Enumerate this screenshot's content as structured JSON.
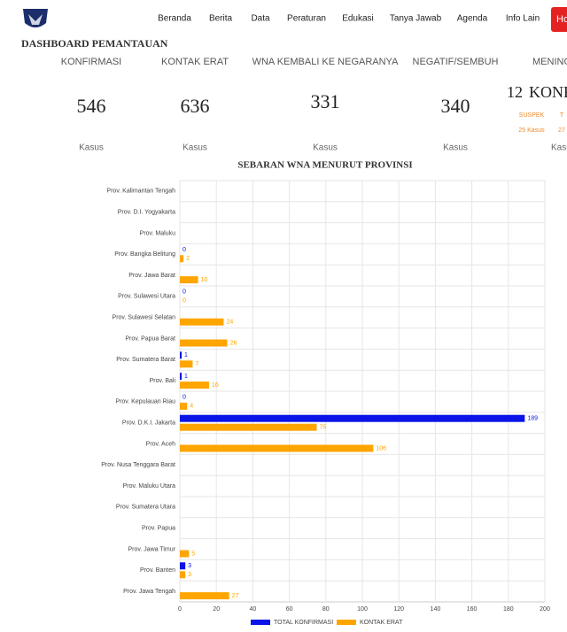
{
  "nav": {
    "items": [
      "Beranda",
      "Berita",
      "Data",
      "Peraturan",
      "Edukasi",
      "Tanya Jawab",
      "Agenda",
      "Info Lain"
    ],
    "button": "Ho"
  },
  "dashboard": {
    "title": "DASHBOARD PEMANTAUAN",
    "stats": [
      {
        "label": "KONFIRMASI",
        "value": 546,
        "unit": "Kasus"
      },
      {
        "label": "KONTAK ERAT",
        "value": 636,
        "unit": "Kasus"
      },
      {
        "label": "WNA KEMBALI KE NEGARANYA",
        "value": 331,
        "unit": "Kasus"
      },
      {
        "label": "NEGATIF/SEMBUH",
        "value": 340,
        "unit": "Kasus"
      }
    ],
    "partial": {
      "label": "MENING",
      "value": 12,
      "suffix": "KONF",
      "unit": "Kasu",
      "sub": [
        {
          "label": "SUSPEK",
          "value": "25 Kasus"
        },
        {
          "label": "T",
          "value": "27"
        }
      ]
    }
  },
  "chart_data": {
    "type": "bar",
    "orientation": "horizontal",
    "title": "SEBARAN WNA MENURUT PROVINSI",
    "categories": [
      "Prov. Kalimantan Tengah",
      "Prov. D.I. Yogyakarta",
      "Prov. Maluku",
      "Prov. Bangka Belitung",
      "Prov. Jawa Barat",
      "Prov. Sulawesi Utara",
      "Prov. Sulawesi Selatan",
      "Prov. Papua Barat",
      "Prov. Sumatera Barat",
      "Prov. Bali",
      "Prov. Kepulauan Riau",
      "Prov. D.K.I. Jakarta",
      "Prov. Aceh",
      "Prov. Nusa Tenggara Barat",
      "Prov. Maluku Utara",
      "Prov. Sumatera Utara",
      "Prov. Papua",
      "Prov. Jawa Timur",
      "Prov. Banten",
      "Prov. Jawa Tengah"
    ],
    "series": [
      {
        "name": "TOTAL KONFIRMASI",
        "color": "#0a14e6",
        "values": [
          null,
          null,
          null,
          0,
          null,
          0,
          null,
          null,
          1,
          1,
          0,
          189,
          null,
          null,
          null,
          null,
          null,
          null,
          3,
          null
        ]
      },
      {
        "name": "KONTAK ERAT",
        "color": "#ffa500",
        "values": [
          null,
          null,
          null,
          2,
          10,
          0,
          24,
          26,
          7,
          16,
          4,
          75,
          106,
          null,
          null,
          null,
          null,
          5,
          3,
          27
        ]
      }
    ],
    "xlim": [
      0,
      200
    ],
    "xticks": [
      0,
      20,
      40,
      60,
      80,
      100,
      120,
      140,
      160,
      180,
      200
    ],
    "grid": true
  }
}
